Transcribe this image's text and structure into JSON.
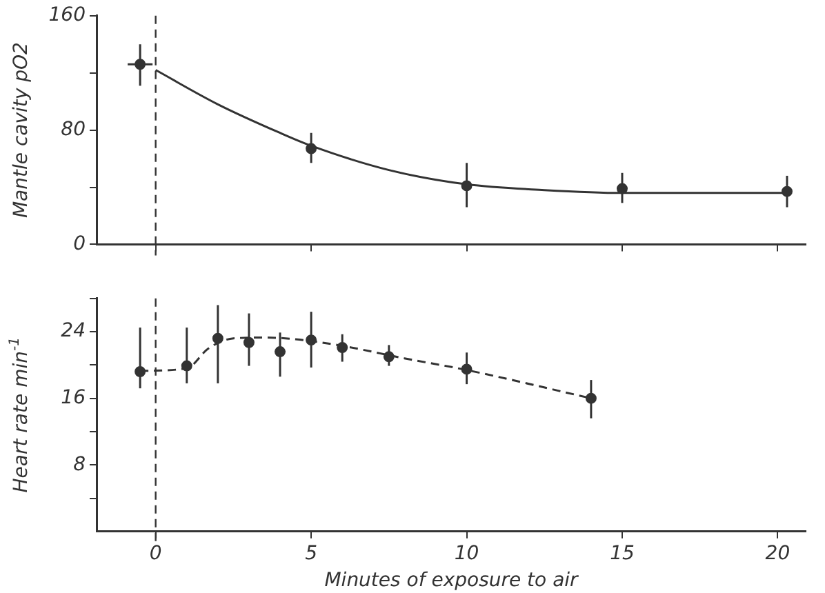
{
  "chart_data": [
    {
      "type": "scatter",
      "ylabel": "Mantle cavity pO2",
      "xlim": [
        -1.9,
        20.9
      ],
      "xticks": [
        0,
        5,
        10,
        15,
        20
      ],
      "ylim": [
        0,
        160
      ],
      "yticks": [
        0,
        {
          "value": 40,
          "label": null
        },
        80,
        {
          "value": 120,
          "label": null
        },
        160
      ],
      "tick_labels": "y",
      "grid": false,
      "legend": false,
      "marker": "circle",
      "series": [
        {
          "color": "#333333",
          "x": [
            -0.5,
            5,
            10,
            15,
            20.3
          ],
          "values": [
            126,
            67,
            41,
            39,
            37
          ],
          "errors": [
            [
              111,
              140
            ],
            [
              57,
              78
            ],
            [
              26,
              57
            ],
            [
              29,
              50
            ],
            [
              26,
              48
            ]
          ],
          "xerrors": [
            [
              -0.9,
              -0.1
            ],
            null,
            null,
            null,
            null
          ]
        },
        {
          "type": "line",
          "color": "#333333",
          "marker": "none",
          "line_style": "solid",
          "x": [
            0,
            2,
            4,
            5,
            7.5,
            10,
            12.5,
            15,
            17.5,
            20.3
          ],
          "values": [
            122,
            98,
            78,
            69,
            52,
            42,
            38,
            36,
            36,
            36
          ]
        }
      ],
      "ref_lines": [
        {
          "axis": "x",
          "value": 0,
          "line_style": "dashed",
          "color": "#333333"
        }
      ]
    },
    {
      "type": "scatter",
      "xlabel": "Minutes of exposure to air",
      "ylabel": "Heart rate min$^{-1}$",
      "xlim": [
        -1.9,
        20.9
      ],
      "xticks": [
        0,
        5,
        10,
        15,
        20
      ],
      "ylim": [
        0,
        28
      ],
      "yticks": [
        {
          "value": 4,
          "label": null
        },
        8,
        {
          "value": 12,
          "label": null
        },
        16,
        {
          "value": 20,
          "label": null
        },
        24,
        {
          "value": 28,
          "label": null
        }
      ],
      "grid": false,
      "legend": false,
      "marker": "circle",
      "series": [
        {
          "color": "#333333",
          "x": [
            -0.5,
            1,
            2,
            3,
            4,
            5,
            6,
            7.5,
            10,
            14
          ],
          "values": [
            19.2,
            19.9,
            23.2,
            22.7,
            21.6,
            23,
            22.1,
            21,
            19.5,
            16
          ],
          "errors": [
            [
              17.2,
              24.5
            ],
            [
              17.8,
              24.5
            ],
            [
              17.8,
              27.2
            ],
            [
              19.9,
              26.2
            ],
            [
              18.6,
              23.9
            ],
            [
              19.7,
              26.4
            ],
            [
              20.4,
              23.7
            ],
            [
              19.9,
              22.4
            ],
            [
              17.7,
              21.5
            ],
            [
              13.6,
              18.2
            ]
          ]
        },
        {
          "type": "line",
          "color": "#333333",
          "marker": "none",
          "line_style": "dashed",
          "x": [
            -0.5,
            1,
            1.7,
            2.5,
            3.5,
            4.5,
            6,
            8,
            10,
            14
          ],
          "values": [
            19.3,
            19.6,
            22,
            23.2,
            23.3,
            23.1,
            22.3,
            20.8,
            19.4,
            16
          ]
        }
      ],
      "ref_lines": [
        {
          "axis": "x",
          "value": 0,
          "line_style": "dashed",
          "color": "#333333"
        }
      ]
    }
  ]
}
